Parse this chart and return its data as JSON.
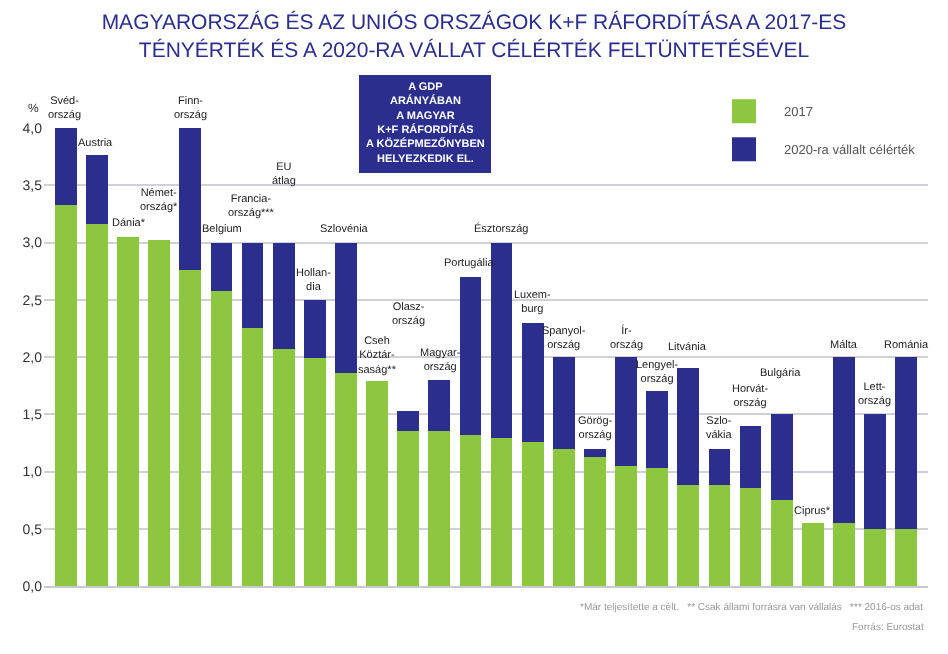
{
  "chart_data": {
    "type": "bar",
    "title": "MAGYARORSZÁG ÉS AZ UNIÓS ORSZÁGOK K+F RÁFORDÍTÁSA A 2017-ES\nTÉNYÉRTÉK ÉS A 2020-RA VÁLLAT CÉLÉRTÉK FELTÜNTETÉSÉVEL",
    "ylabel": "%",
    "categories": [
      "Svéd-\nország",
      "Austria",
      "Dánia*",
      "Német-\nország*",
      "Finn-\nország",
      "Belgium",
      "Francia-\nország***",
      "EU\nátlag",
      "Hollan-\ndia",
      "Szlovénia",
      "Cseh\nKöztár-\nsaság**",
      "Olasz-\nország",
      "Magyar-\nország",
      "Portugália",
      "Észtország",
      "Luxem-\nburg",
      "Spanyol-\nország",
      "Görög-\nország",
      "Ír-\nország",
      "Lengyel-\nország",
      "Litvánia",
      "Szlo-\nvákia",
      "Horvát-\nország",
      "Bulgária",
      "Ciprus*",
      "Málta",
      "Lett-\nország",
      "Románia"
    ],
    "stacked": true,
    "series": [
      {
        "name": "2017",
        "color": "#8dc63f",
        "values": [
          3.33,
          3.16,
          3.05,
          3.02,
          2.76,
          2.58,
          2.25,
          2.07,
          1.99,
          1.86,
          1.79,
          1.35,
          1.35,
          1.32,
          1.29,
          1.26,
          1.2,
          1.13,
          1.05,
          1.03,
          0.88,
          0.88,
          0.86,
          0.75,
          0.55,
          0.55,
          0.5,
          0.5
        ]
      },
      {
        "name": "2020-ra vállalt célérték",
        "color": "#2b2e8c",
        "values": [
          0.67,
          0.6,
          null,
          null,
          1.24,
          0.42,
          0.75,
          0.93,
          0.51,
          1.14,
          null,
          0.18,
          0.45,
          1.38,
          1.71,
          1.04,
          0.8,
          0.07,
          0.95,
          0.67,
          1.02,
          0.32,
          0.54,
          0.75,
          null,
          1.45,
          1.0,
          1.5
        ]
      }
    ],
    "ylim": [
      0,
      4.0
    ],
    "yticks": [
      {
        "value": 0,
        "label": "0,0"
      },
      {
        "value": 0.5,
        "label": "0,5"
      },
      {
        "value": 1,
        "label": "1,0"
      },
      {
        "value": 1.5,
        "label": "1,5"
      },
      {
        "value": 2,
        "label": "2,0"
      },
      {
        "value": 2.5,
        "label": "2,5"
      },
      {
        "value": 3,
        "label": "3,0"
      },
      {
        "value": 3.5,
        "label": "3,5"
      },
      {
        "value": 4,
        "label": "4,0"
      }
    ],
    "tick_labels": "y",
    "grid": "y",
    "legend": "top right",
    "annotations": [
      "A GDP\nARÁNYÁBAN\nA MAGYAR\nK+F RÁFORDÍTÁS\nA KÖZÉPMEZŐNYBEN\nHELYEZKEDIK EL.",
      "*Már teljesítette a célt.   ** Csak állami forrásra van vállalás   *** 2016-os adat",
      "Forrás: Eurostat"
    ]
  }
}
